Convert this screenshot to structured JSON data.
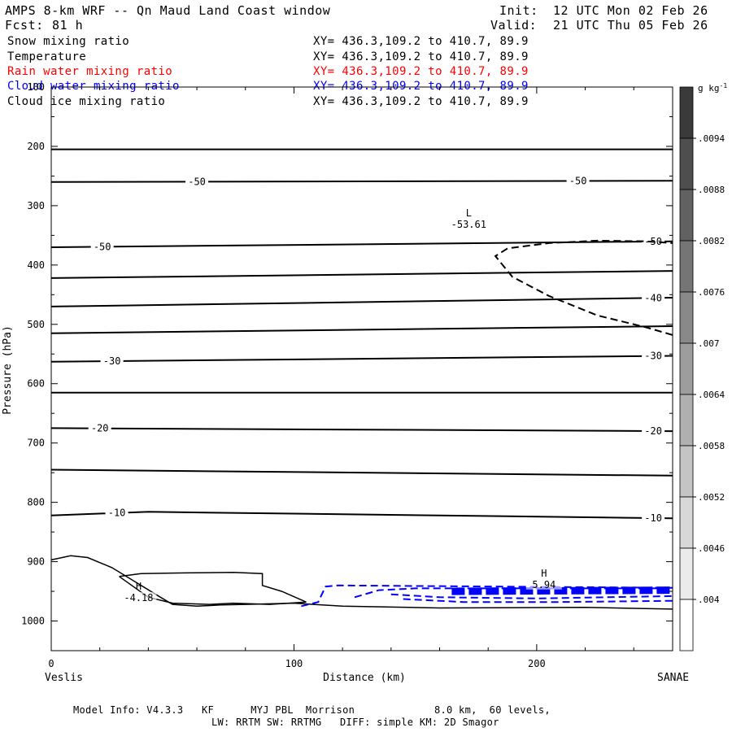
{
  "header": {
    "title": "AMPS 8-km WRF -- Qn Maud Land Coast window",
    "fcst_label": "Fcst:",
    "fcst_value": "81 h",
    "init_label": "Init:",
    "init_value": "12 UTC Mon 02 Feb 26",
    "valid_label": "Valid:",
    "valid_value": "21 UTC Thu 05 Feb 26"
  },
  "fields": [
    {
      "name": "Snow mixing ratio",
      "xy": "XY= 436.3,109.2 to 410.7, 89.9",
      "color": "#000000"
    },
    {
      "name": "Temperature",
      "xy": "XY= 436.3,109.2 to 410.7, 89.9",
      "color": "#000000"
    },
    {
      "name": "Rain water mixing ratio",
      "xy": "XY= 436.3,109.2 to 410.7, 89.9",
      "color": "#ff0000"
    },
    {
      "name": "Cloud water mixing ratio",
      "xy": "XY= 436.3,109.2 to 410.7, 89.9",
      "color": "#0000ff"
    },
    {
      "name": "Cloud ice mixing ratio",
      "xy": "XY= 436.3,109.2 to 410.7, 89.9",
      "color": "#000000"
    }
  ],
  "chart_data": {
    "type": "contour-cross-section",
    "xlabel": "Distance (km)",
    "ylabel": "Pressure (hPa)",
    "xlim": [
      0,
      256
    ],
    "ylim": [
      1050,
      100
    ],
    "x_ticks": [
      0,
      100,
      200
    ],
    "y_ticks": [
      100,
      200,
      300,
      400,
      500,
      600,
      700,
      800,
      900,
      1000
    ],
    "endpoints": {
      "left": "Veslis",
      "right": "SANAE"
    },
    "temperature_isotherms": [
      {
        "points": [
          [
            0,
            205
          ],
          [
            256,
            205
          ]
        ]
      },
      {
        "points": [
          [
            0,
            260
          ],
          [
            256,
            258
          ]
        ],
        "labels": [
          {
            "x": 60,
            "text": "-50"
          },
          {
            "x": 217,
            "text": "-50"
          }
        ]
      },
      {
        "points": [
          [
            0,
            370
          ],
          [
            256,
            360
          ]
        ],
        "labels": [
          {
            "x": 21,
            "text": "-50"
          },
          {
            "x": 248,
            "text": "-50"
          }
        ]
      },
      {
        "points": [
          [
            0,
            422
          ],
          [
            256,
            410
          ]
        ]
      },
      {
        "points": [
          [
            0,
            470
          ],
          [
            256,
            455
          ]
        ],
        "labels": [
          {
            "x": 248,
            "text": "-40"
          }
        ]
      },
      {
        "points": [
          [
            0,
            515
          ],
          [
            256,
            503
          ]
        ]
      },
      {
        "points": [
          [
            0,
            563
          ],
          [
            256,
            553
          ]
        ],
        "labels": [
          {
            "x": 25,
            "text": "-30"
          },
          {
            "x": 248,
            "text": "-30"
          }
        ]
      },
      {
        "points": [
          [
            0,
            615
          ],
          [
            256,
            615
          ]
        ]
      },
      {
        "points": [
          [
            0,
            675
          ],
          [
            256,
            680
          ]
        ],
        "labels": [
          {
            "x": 20,
            "text": "-20"
          },
          {
            "x": 248,
            "text": "-20"
          }
        ]
      },
      {
        "points": [
          [
            0,
            745
          ],
          [
            256,
            755
          ]
        ]
      },
      {
        "points": [
          [
            0,
            822
          ],
          [
            40,
            816
          ],
          [
            256,
            827
          ]
        ],
        "labels": [
          {
            "x": 27,
            "text": "-10"
          },
          {
            "x": 248,
            "text": "-10"
          }
        ]
      }
    ],
    "terrain_contour_outer": [
      [
        0,
        897
      ],
      [
        8,
        890
      ],
      [
        15,
        893
      ],
      [
        25,
        910
      ],
      [
        35,
        935
      ],
      [
        45,
        960
      ],
      [
        50,
        972
      ],
      [
        60,
        975
      ],
      [
        70,
        973
      ],
      [
        80,
        972
      ],
      [
        100,
        970
      ],
      [
        120,
        975
      ],
      [
        160,
        978
      ],
      [
        220,
        977
      ],
      [
        256,
        980
      ]
    ],
    "terrain_contour_inner": [
      [
        28,
        925
      ],
      [
        37,
        920
      ],
      [
        55,
        919
      ],
      [
        75,
        918
      ],
      [
        87,
        920
      ],
      [
        87,
        940
      ],
      [
        95,
        950
      ],
      [
        105,
        968
      ],
      [
        90,
        972
      ],
      [
        75,
        970
      ],
      [
        65,
        972
      ],
      [
        50,
        970
      ],
      [
        40,
        960
      ],
      [
        28,
        925
      ]
    ],
    "dashed_temperature_contour": [
      [
        256,
        518
      ],
      [
        245,
        505
      ],
      [
        225,
        485
      ],
      [
        205,
        452
      ],
      [
        190,
        420
      ],
      [
        183,
        385
      ],
      [
        188,
        372
      ],
      [
        205,
        363
      ],
      [
        225,
        359
      ],
      [
        245,
        360
      ],
      [
        256,
        363
      ]
    ],
    "cloud_water_contours": [
      {
        "points": [
          [
            103,
            975
          ],
          [
            110,
            968
          ],
          [
            113,
            942
          ],
          [
            118,
            940
          ],
          [
            256,
            944
          ]
        ],
        "weight": "thin"
      },
      {
        "points": [
          [
            125,
            960
          ],
          [
            135,
            948
          ],
          [
            150,
            945
          ],
          [
            256,
            945
          ]
        ],
        "weight": "thin"
      },
      {
        "points": [
          [
            140,
            955
          ],
          [
            160,
            960
          ],
          [
            200,
            962
          ],
          [
            256,
            958
          ]
        ],
        "weight": "thin"
      },
      {
        "points": [
          [
            145,
            963
          ],
          [
            170,
            968
          ],
          [
            210,
            968
          ],
          [
            256,
            966
          ]
        ],
        "weight": "thin"
      },
      {
        "points": [
          [
            165,
            950
          ],
          [
            256,
            948
          ]
        ],
        "weight": "thick"
      }
    ],
    "markers": [
      {
        "type": "H",
        "x": 36,
        "p": 947,
        "value": "-4.18"
      },
      {
        "type": "H",
        "x": 203,
        "p": 925,
        "value": "5.94"
      },
      {
        "type": "L",
        "x": 172,
        "p": 318,
        "value": "-53.61"
      }
    ],
    "colorbar": {
      "unit": "g kg",
      "unit_sup": "-1",
      "labels": [
        ".0094",
        ".0088",
        ".0082",
        ".0076",
        ".007",
        ".0064",
        ".0058",
        ".0052",
        ".0046",
        ".004"
      ]
    }
  },
  "footer": {
    "line1": "Model Info: V4.3.3   KF      MYJ PBL  Morrison             8.0 km,  60 levels,",
    "line2": "LW: RRTM SW: RRTMG   DIFF: simple KM: 2D Smagor"
  }
}
